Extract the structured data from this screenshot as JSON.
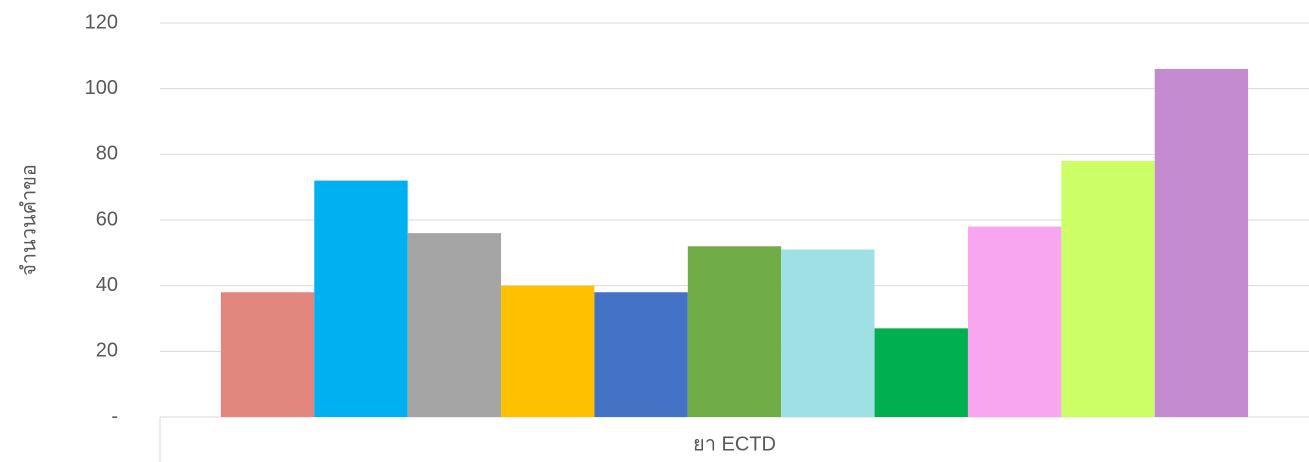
{
  "chart_data": {
    "type": "bar",
    "y_label": "จำนวนคำขอ",
    "categories": [
      "ยา ECTD"
    ],
    "series": [
      {
        "color": "#e2877e",
        "values": [
          38
        ]
      },
      {
        "color": "#00b0f0",
        "values": [
          72
        ]
      },
      {
        "color": "#a5a5a5",
        "values": [
          56
        ]
      },
      {
        "color": "#ffc000",
        "values": [
          40
        ]
      },
      {
        "color": "#4472c4",
        "values": [
          38
        ]
      },
      {
        "color": "#70ad47",
        "values": [
          52
        ]
      },
      {
        "color": "#9fe0e4",
        "values": [
          51
        ]
      },
      {
        "color": "#00b050",
        "values": [
          27
        ]
      },
      {
        "color": "#f7a6ef",
        "values": [
          58
        ]
      },
      {
        "color": "#ccff66",
        "values": [
          78
        ]
      },
      {
        "color": "#c48bd0",
        "values": [
          106
        ]
      }
    ],
    "ylim": [
      0,
      120
    ],
    "yticks": [
      {
        "value": 0,
        "label": "-"
      },
      20,
      40,
      60,
      80,
      100,
      120
    ],
    "grid": true
  }
}
